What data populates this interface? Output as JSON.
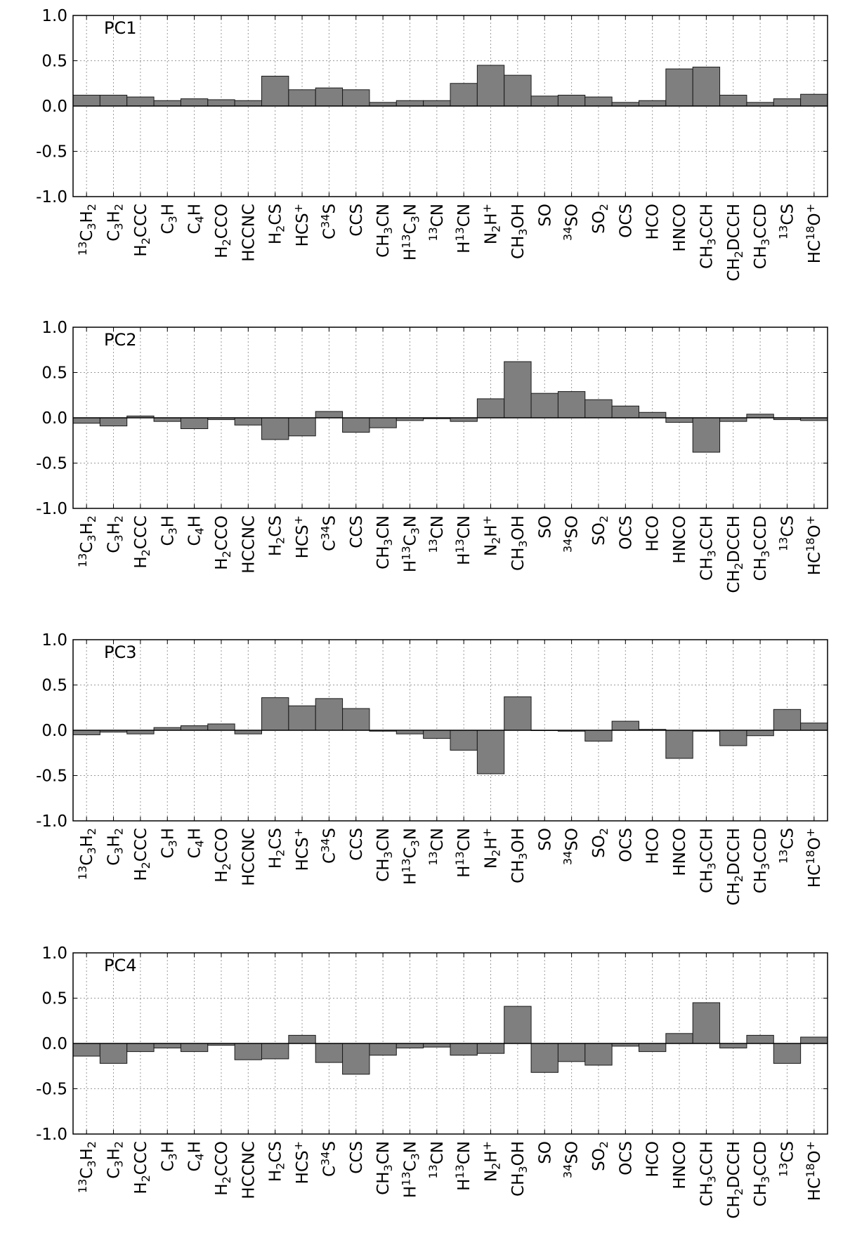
{
  "chart_data": [
    {
      "type": "bar",
      "title": "PC1",
      "ylim": [
        -1.0,
        1.0
      ],
      "yticks": [
        "1.0",
        "0.5",
        "0.0",
        "-0.5",
        "-1.0"
      ],
      "grid": true,
      "categories": [
        "13C3H2",
        "C3H2",
        "H2CCC",
        "C3H",
        "C4H",
        "H2CCO",
        "HCCNC",
        "H2CS",
        "HCS+",
        "C34S",
        "CCS",
        "CH3CN",
        "H13C3N",
        "13CN",
        "H13CN",
        "N2H+",
        "CH3OH",
        "SO",
        "34SO",
        "SO2",
        "OCS",
        "HCO",
        "HNCO",
        "CH3CCH",
        "CH2DCCH",
        "CH3CCD",
        "13CS",
        "HC18O+"
      ],
      "values": [
        0.12,
        0.12,
        0.1,
        0.06,
        0.08,
        0.07,
        0.06,
        0.33,
        0.18,
        0.2,
        0.18,
        0.04,
        0.06,
        0.06,
        0.25,
        0.45,
        0.34,
        0.11,
        0.12,
        0.1,
        0.04,
        0.06,
        0.41,
        0.43,
        0.12,
        0.04,
        0.08,
        0.13
      ]
    },
    {
      "type": "bar",
      "title": "PC2",
      "ylim": [
        -1.0,
        1.0
      ],
      "yticks": [
        "1.0",
        "0.5",
        "0.0",
        "-0.5",
        "-1.0"
      ],
      "grid": true,
      "categories": [
        "13C3H2",
        "C3H2",
        "H2CCC",
        "C3H",
        "C4H",
        "H2CCO",
        "HCCNC",
        "H2CS",
        "HCS+",
        "C34S",
        "CCS",
        "CH3CN",
        "H13C3N",
        "13CN",
        "H13CN",
        "N2H+",
        "CH3OH",
        "SO",
        "34SO",
        "SO2",
        "OCS",
        "HCO",
        "HNCO",
        "CH3CCH",
        "CH2DCCH",
        "CH3CCD",
        "13CS",
        "HC18O+"
      ],
      "values": [
        -0.06,
        -0.09,
        0.02,
        -0.04,
        -0.12,
        -0.02,
        -0.08,
        -0.24,
        -0.2,
        0.07,
        -0.16,
        -0.11,
        -0.03,
        -0.01,
        -0.04,
        0.21,
        0.62,
        0.27,
        0.29,
        0.2,
        0.13,
        0.06,
        -0.05,
        -0.38,
        -0.04,
        0.04,
        -0.02,
        -0.03
      ]
    },
    {
      "type": "bar",
      "title": "PC3",
      "ylim": [
        -1.0,
        1.0
      ],
      "yticks": [
        "1.0",
        "0.5",
        "0.0",
        "-0.5",
        "-1.0"
      ],
      "grid": true,
      "categories": [
        "13C3H2",
        "C3H2",
        "H2CCC",
        "C3H",
        "C4H",
        "H2CCO",
        "HCCNC",
        "H2CS",
        "HCS+",
        "C34S",
        "CCS",
        "CH3CN",
        "H13C3N",
        "13CN",
        "H13CN",
        "N2H+",
        "CH3OH",
        "SO",
        "34SO",
        "SO2",
        "OCS",
        "HCO",
        "HNCO",
        "CH3CCH",
        "CH2DCCH",
        "CH3CCD",
        "13CS",
        "HC18O+"
      ],
      "values": [
        -0.05,
        -0.02,
        -0.04,
        0.03,
        0.05,
        0.07,
        -0.04,
        0.36,
        0.27,
        0.35,
        0.24,
        -0.01,
        -0.04,
        -0.09,
        -0.22,
        -0.48,
        0.37,
        0.0,
        -0.01,
        -0.12,
        0.1,
        0.01,
        -0.31,
        -0.01,
        -0.17,
        -0.06,
        0.23,
        0.08
      ]
    },
    {
      "type": "bar",
      "title": "PC4",
      "ylim": [
        -1.0,
        1.0
      ],
      "yticks": [
        "1.0",
        "0.5",
        "0.0",
        "-0.5",
        "-1.0"
      ],
      "grid": true,
      "categories": [
        "13C3H2",
        "C3H2",
        "H2CCC",
        "C3H",
        "C4H",
        "H2CCO",
        "HCCNC",
        "H2CS",
        "HCS+",
        "C34S",
        "CCS",
        "CH3CN",
        "H13C3N",
        "13CN",
        "H13CN",
        "N2H+",
        "CH3OH",
        "SO",
        "34SO",
        "SO2",
        "OCS",
        "HCO",
        "HNCO",
        "CH3CCH",
        "CH2DCCH",
        "CH3CCD",
        "13CS",
        "HC18O+"
      ],
      "values": [
        -0.14,
        -0.22,
        -0.09,
        -0.05,
        -0.09,
        -0.02,
        -0.18,
        -0.17,
        0.09,
        -0.21,
        -0.34,
        -0.13,
        -0.05,
        -0.04,
        -0.13,
        -0.11,
        0.41,
        -0.32,
        -0.2,
        -0.24,
        -0.03,
        -0.09,
        0.11,
        0.45,
        -0.05,
        0.09,
        -0.22,
        0.07
      ]
    }
  ],
  "styles": {
    "bar_fill": "#7f7f7f",
    "bar_stroke": "#1a1a1a",
    "grid_color": "#9a9a9a",
    "axis_color": "#000000"
  }
}
